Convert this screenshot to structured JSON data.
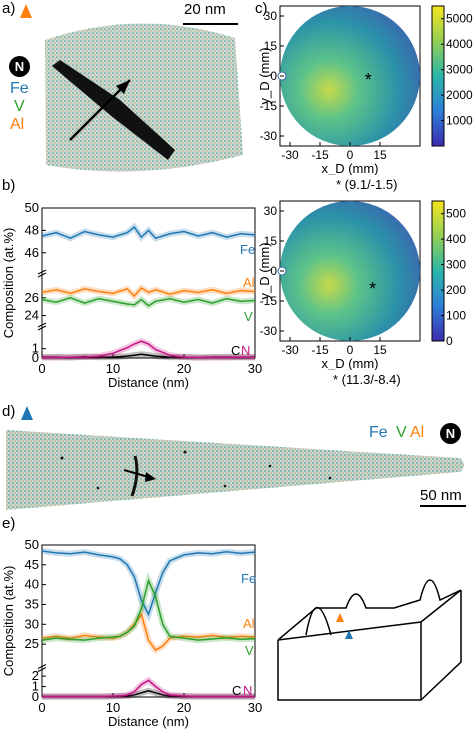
{
  "panels": {
    "a": {
      "label": "a)",
      "scale_label": "20 nm",
      "element_n": "N",
      "legend": [
        "Fe",
        "V",
        "Al"
      ]
    },
    "b": {
      "label": "b)"
    },
    "c": {
      "label": "c)",
      "map1_caption": "* (9.1/-1.5)",
      "map2_caption": "* (11.3/-8.4)"
    },
    "d": {
      "label": "d)",
      "legend": [
        "Fe",
        "V",
        "Al"
      ],
      "element_n": "N",
      "scale_label": "50 nm"
    },
    "e": {
      "label": "e)"
    }
  },
  "colors": {
    "Fe": "#1f77b4",
    "V": "#2ca02c",
    "Al": "#ff7f0e",
    "C": "#000000",
    "N": "#c71585"
  },
  "chart_data": [
    {
      "type": "line",
      "panel": "b",
      "xlabel": "Distance (nm)",
      "ylabel": "Composition (at.%)",
      "xlim": [
        0,
        30
      ],
      "xticks": [
        0,
        10,
        20,
        30
      ],
      "y_segments": [
        {
          "ylim": [
            45,
            50
          ],
          "ticks": [
            46,
            48,
            50
          ]
        },
        {
          "ylim": [
            23.5,
            28
          ],
          "ticks": [
            24,
            26
          ]
        },
        {
          "ylim": [
            0,
            3
          ],
          "ticks": [
            0.0,
            1.0
          ]
        }
      ],
      "x": [
        0,
        2,
        4,
        6,
        8,
        10,
        12,
        13,
        14,
        15,
        16,
        18,
        20,
        22,
        24,
        26,
        28,
        30
      ],
      "series": [
        {
          "name": "Fe",
          "values": [
            47.5,
            47.8,
            47.3,
            47.9,
            47.6,
            47.4,
            47.8,
            48.3,
            47.4,
            48.0,
            47.3,
            47.7,
            47.9,
            47.5,
            47.8,
            47.4,
            47.7,
            47.6
          ]
        },
        {
          "name": "Al",
          "values": [
            26.6,
            26.9,
            26.5,
            27.0,
            26.7,
            26.5,
            27.0,
            26.2,
            27.1,
            26.6,
            26.9,
            26.4,
            26.8,
            26.6,
            26.9,
            26.5,
            26.8,
            26.7
          ]
        },
        {
          "name": "V",
          "values": [
            25.8,
            25.5,
            26.0,
            25.4,
            25.9,
            25.6,
            25.3,
            25.2,
            25.8,
            25.1,
            25.6,
            25.9,
            25.5,
            25.8,
            25.4,
            25.9,
            25.6,
            25.7
          ]
        },
        {
          "name": "C",
          "values": [
            0.1,
            0.1,
            0.05,
            0.15,
            0.1,
            0.1,
            0.2,
            0.3,
            0.4,
            0.3,
            0.2,
            0.1,
            0.1,
            0.05,
            0.1,
            0.1,
            0.1,
            0.1
          ]
        },
        {
          "name": "N",
          "values": [
            0.05,
            0.05,
            0.1,
            0.1,
            0.2,
            0.5,
            1.1,
            1.5,
            1.8,
            1.5,
            0.9,
            0.3,
            0.1,
            0.05,
            0.05,
            0.05,
            0.1,
            0.05
          ]
        }
      ]
    },
    {
      "type": "line",
      "panel": "e",
      "xlabel": "Distance (nm)",
      "ylabel": "Composition (at.%)",
      "xlim": [
        0,
        30
      ],
      "xticks": [
        0,
        10,
        20,
        30
      ],
      "y_segments": [
        {
          "ylim": [
            21,
            50
          ],
          "ticks": [
            25,
            30,
            35,
            40,
            45,
            50
          ]
        },
        {
          "ylim": [
            0,
            2.3
          ],
          "ticks": [
            0,
            1,
            2
          ]
        }
      ],
      "x": [
        0,
        2,
        4,
        6,
        8,
        10,
        11,
        12,
        13,
        14,
        15,
        16,
        17,
        18,
        20,
        22,
        24,
        26,
        28,
        30
      ],
      "series": [
        {
          "name": "Fe",
          "values": [
            48.5,
            48.0,
            47.8,
            48.2,
            47.5,
            47.0,
            46.5,
            45.0,
            42.0,
            36.0,
            32.5,
            38.0,
            43.0,
            46.0,
            47.5,
            48.0,
            47.8,
            48.3,
            47.9,
            48.2
          ]
        },
        {
          "name": "Al",
          "values": [
            26.5,
            27.0,
            26.5,
            27.2,
            26.8,
            26.5,
            27.0,
            28.0,
            30.0,
            32.5,
            26.0,
            23.5,
            24.5,
            26.5,
            27.0,
            26.8,
            27.2,
            26.7,
            27.0,
            26.8
          ]
        },
        {
          "name": "V",
          "values": [
            26.0,
            26.5,
            26.2,
            26.0,
            26.5,
            26.8,
            27.0,
            28.0,
            29.5,
            34.0,
            41.0,
            37.0,
            30.0,
            27.0,
            26.5,
            26.0,
            26.3,
            26.6,
            26.2,
            26.4
          ]
        },
        {
          "name": "C",
          "values": [
            0.05,
            0.05,
            0.05,
            0.05,
            0.05,
            0.05,
            0.1,
            0.1,
            0.2,
            0.4,
            0.6,
            0.4,
            0.2,
            0.1,
            0.05,
            0.05,
            0.05,
            0.05,
            0.05,
            0.05
          ]
        },
        {
          "name": "N",
          "values": [
            0.05,
            0.05,
            0.05,
            0.05,
            0.05,
            0.1,
            0.1,
            0.2,
            0.5,
            1.2,
            1.6,
            1.0,
            0.5,
            0.2,
            0.1,
            0.05,
            0.05,
            0.05,
            0.05,
            0.05
          ]
        }
      ]
    },
    {
      "type": "heatmap",
      "panel": "c-top",
      "xlabel": "x_D (mm)",
      "ylabel": "y_D (mm)",
      "xticks": [
        -30,
        -15,
        0,
        15
      ],
      "yticks": [
        30,
        15,
        0,
        -15,
        -30
      ],
      "colorbar_ticks": [
        1000,
        2000,
        3000,
        4000,
        5000
      ],
      "colorbar_range": [
        0,
        5500
      ],
      "marker": [
        9.1,
        -1.5
      ]
    },
    {
      "type": "heatmap",
      "panel": "c-bottom",
      "xlabel": "x_D (mm)",
      "ylabel": "y_D (mm)",
      "xticks": [
        -30,
        -15,
        0,
        15
      ],
      "yticks": [
        30,
        15,
        0,
        -15,
        -30
      ],
      "colorbar_ticks": [
        0,
        100,
        200,
        300,
        400,
        500
      ],
      "colorbar_range": [
        0,
        550
      ],
      "marker": [
        11.3,
        -8.4
      ]
    }
  ]
}
